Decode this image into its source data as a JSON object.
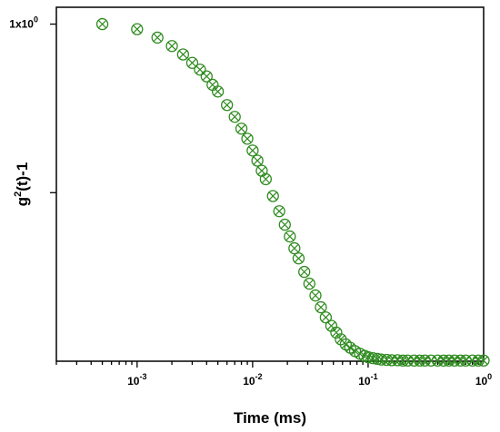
{
  "chart_data": {
    "type": "scatter",
    "xlabel": "Time (ms)",
    "ylabel": "g2(t)-1",
    "ylabel_parts": {
      "base": "g",
      "sup": "2",
      "rest": "(t)-1"
    },
    "x_scale": "log",
    "xlim": [
      0.0002,
      1
    ],
    "ylim": [
      0.0,
      1.05
    ],
    "x_ticks": [
      {
        "value": 0.001,
        "base": "10",
        "exp": "-3"
      },
      {
        "value": 0.01,
        "base": "10",
        "exp": "-2"
      },
      {
        "value": 0.1,
        "base": "10",
        "exp": "-1"
      },
      {
        "value": 1,
        "base": "10",
        "exp": "0"
      }
    ],
    "y_ticks": [
      {
        "value": 1.0,
        "base": "1x10",
        "exp": "0"
      },
      {
        "value": 0.5,
        "base": "",
        "exp": ""
      }
    ],
    "marker": "circle-x",
    "marker_color": "#2e8b1e",
    "grid": false,
    "x": [
      0.0005,
      0.001,
      0.0015,
      0.002,
      0.0025,
      0.003,
      0.0035,
      0.004,
      0.0045,
      0.005,
      0.006,
      0.007,
      0.008,
      0.009,
      0.01,
      0.011,
      0.012,
      0.013,
      0.015,
      0.017,
      0.019,
      0.021,
      0.023,
      0.025,
      0.028,
      0.031,
      0.035,
      0.039,
      0.043,
      0.048,
      0.053,
      0.058,
      0.064,
      0.07,
      0.077,
      0.085,
      0.093,
      0.1,
      0.11,
      0.12,
      0.13,
      0.145,
      0.16,
      0.18,
      0.2,
      0.22,
      0.25,
      0.28,
      0.31,
      0.35,
      0.4,
      0.45,
      0.5,
      0.56,
      0.63,
      0.7,
      0.8,
      0.9,
      1.0
    ],
    "y": [
      1.0,
      0.985,
      0.96,
      0.935,
      0.91,
      0.885,
      0.865,
      0.845,
      0.82,
      0.8,
      0.76,
      0.725,
      0.69,
      0.66,
      0.625,
      0.595,
      0.565,
      0.54,
      0.49,
      0.445,
      0.405,
      0.37,
      0.335,
      0.305,
      0.265,
      0.23,
      0.195,
      0.16,
      0.13,
      0.105,
      0.085,
      0.065,
      0.05,
      0.04,
      0.03,
      0.022,
      0.016,
      0.012,
      0.009,
      0.007,
      0.005,
      0.004,
      0.003,
      0.003,
      0.002,
      0.002,
      0.002,
      0.002,
      0.002,
      0.002,
      0.002,
      0.002,
      0.002,
      0.002,
      0.002,
      0.002,
      0.002,
      0.002,
      0.002
    ]
  }
}
